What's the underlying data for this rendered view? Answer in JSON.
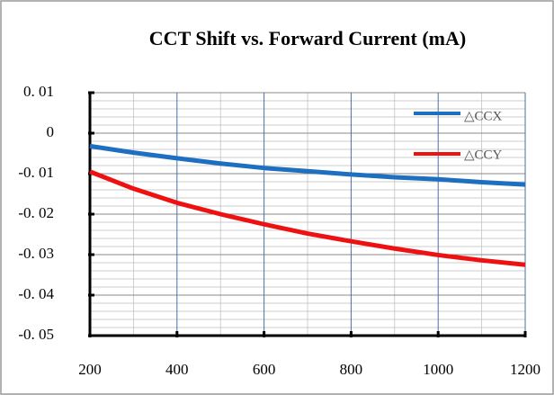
{
  "chart_data": {
    "type": "line",
    "title": "CCT  Shift vs. Forward Current (mA)",
    "x": [
      200,
      300,
      400,
      500,
      600,
      700,
      800,
      900,
      1000,
      1100,
      1200
    ],
    "series": [
      {
        "name": "△CCX",
        "color": "#1f6fc0",
        "values": [
          -0.0032,
          -0.0048,
          -0.0062,
          -0.0075,
          -0.0086,
          -0.0094,
          -0.0102,
          -0.0109,
          -0.0114,
          -0.0121,
          -0.0127
        ]
      },
      {
        "name": "△CCY",
        "color": "#ee1111",
        "values": [
          -0.0095,
          -0.0137,
          -0.0172,
          -0.02,
          -0.0225,
          -0.0248,
          -0.0267,
          -0.0285,
          -0.0301,
          -0.0314,
          -0.0325
        ]
      }
    ],
    "xlim": [
      200,
      1200
    ],
    "xticks": [
      200,
      400,
      600,
      800,
      1000,
      1200
    ],
    "ylim": [
      -0.05,
      0.01
    ],
    "yticks": [
      {
        "value": -0.05,
        "label": "-0. 05"
      },
      {
        "value": -0.04,
        "label": "-0. 04"
      },
      {
        "value": -0.03,
        "label": "-0. 03"
      },
      {
        "value": -0.02,
        "label": "-0. 02"
      },
      {
        "value": -0.01,
        "label": "-0. 01"
      },
      0,
      {
        "value": 0.01,
        "label": "0. 01"
      }
    ],
    "grid": true,
    "legend": "upper right"
  }
}
